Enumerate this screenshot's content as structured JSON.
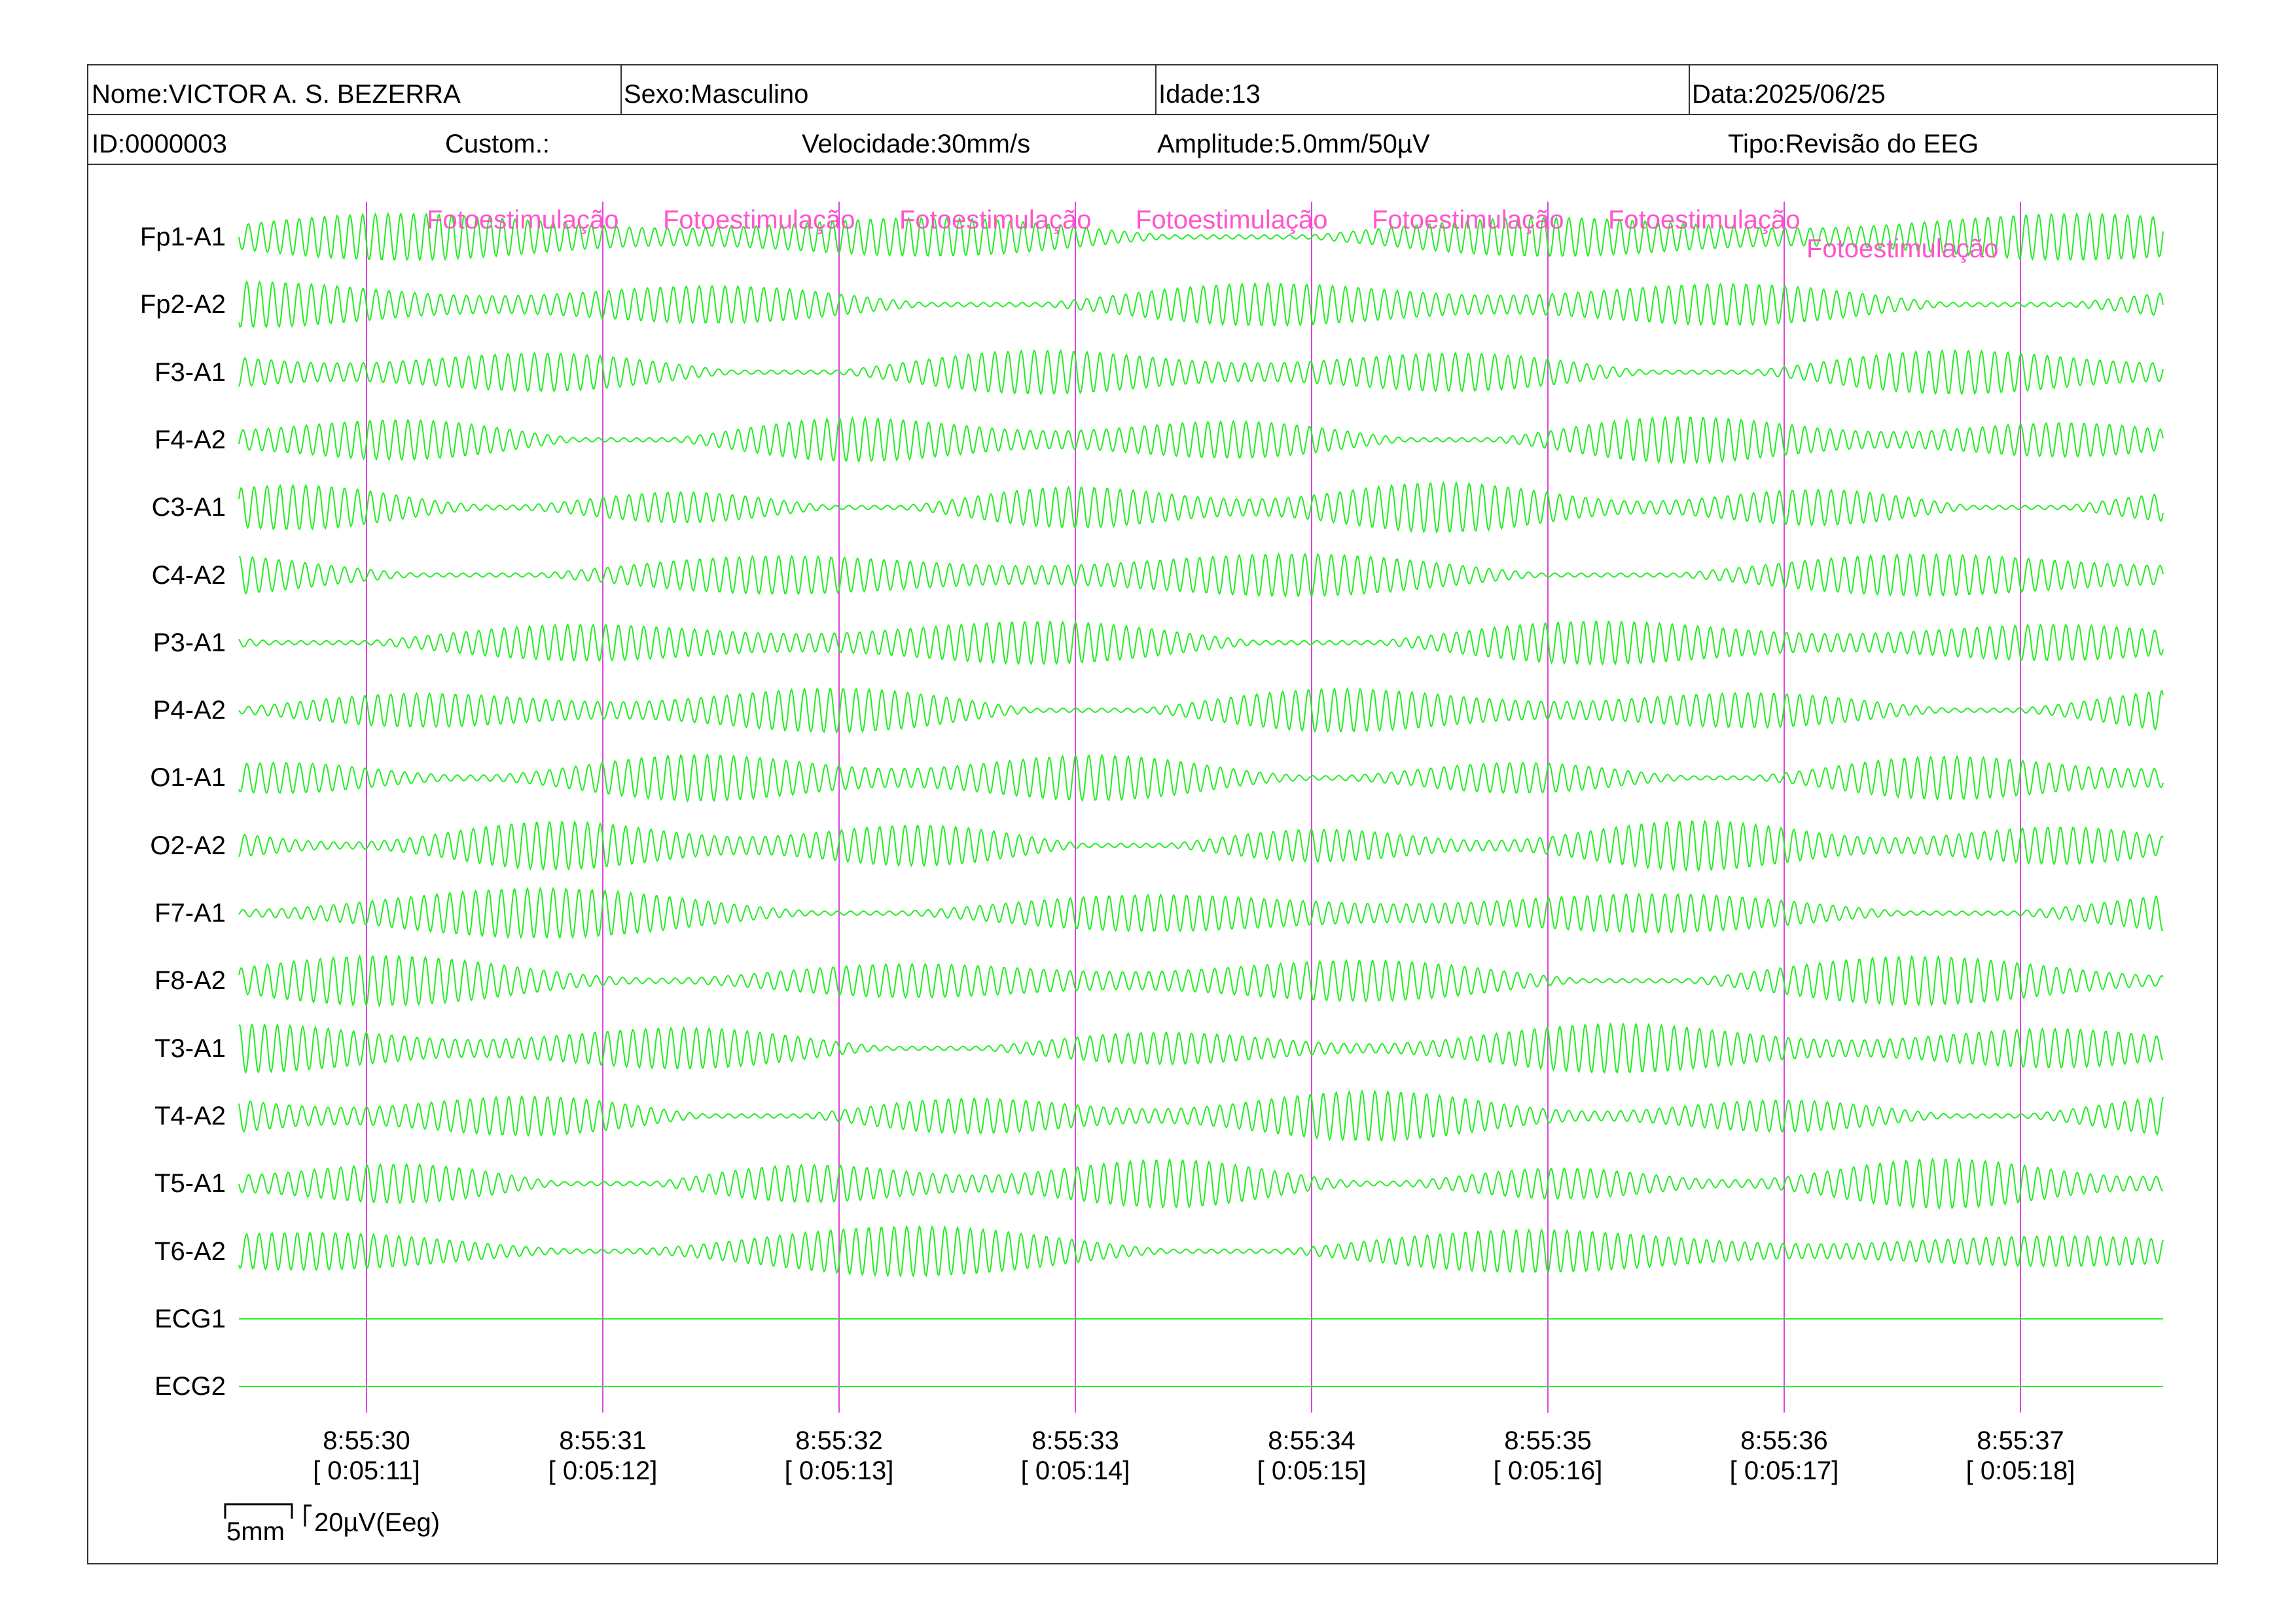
{
  "header": {
    "name": "Nome:VICTOR A. S. BEZERRA",
    "sex": "Sexo:Masculino",
    "age": "Idade:13",
    "date": "Data:2025/06/25",
    "id": "ID:0000003",
    "custom": "Custom.:",
    "speed": "Velocidade:30mm/s",
    "amplitude": "Amplitude:5.0mm/50µV",
    "type": "Tipo:Revisão do EEG"
  },
  "channels": [
    {
      "label": "Fp1-A1",
      "kind": "eeg"
    },
    {
      "label": "Fp2-A2",
      "kind": "eeg"
    },
    {
      "label": "F3-A1",
      "kind": "eeg"
    },
    {
      "label": "F4-A2",
      "kind": "eeg"
    },
    {
      "label": "C3-A1",
      "kind": "eeg"
    },
    {
      "label": "C4-A2",
      "kind": "eeg"
    },
    {
      "label": "P3-A1",
      "kind": "eeg"
    },
    {
      "label": "P4-A2",
      "kind": "eeg"
    },
    {
      "label": "O1-A1",
      "kind": "eeg"
    },
    {
      "label": "O2-A2",
      "kind": "eeg"
    },
    {
      "label": "F7-A1",
      "kind": "eeg"
    },
    {
      "label": "F8-A2",
      "kind": "eeg"
    },
    {
      "label": "T3-A1",
      "kind": "eeg"
    },
    {
      "label": "T4-A2",
      "kind": "eeg"
    },
    {
      "label": "T5-A1",
      "kind": "eeg"
    },
    {
      "label": "T6-A2",
      "kind": "eeg"
    },
    {
      "label": "ECG1",
      "kind": "flat"
    },
    {
      "label": "ECG2",
      "kind": "flat"
    }
  ],
  "events": [
    {
      "label": "Fotoestimulação"
    },
    {
      "label": "Fotoestimulação"
    },
    {
      "label": "Fotoestimulação"
    },
    {
      "label": "Fotoestimulação"
    },
    {
      "label": "Fotoestimulação"
    },
    {
      "label": "Fotoestimulação"
    },
    {
      "label": "Fotoestimulação"
    }
  ],
  "time_marks": [
    {
      "clock": "8:55:30",
      "elapsed": "[ 0:05:11]"
    },
    {
      "clock": "8:55:31",
      "elapsed": "[ 0:05:12]"
    },
    {
      "clock": "8:55:32",
      "elapsed": "[ 0:05:13]"
    },
    {
      "clock": "8:55:33",
      "elapsed": "[ 0:05:14]"
    },
    {
      "clock": "8:55:34",
      "elapsed": "[ 0:05:15]"
    },
    {
      "clock": "8:55:35",
      "elapsed": "[ 0:05:16]"
    },
    {
      "clock": "8:55:36",
      "elapsed": "[ 0:05:17]"
    },
    {
      "clock": "8:55:37",
      "elapsed": "[ 0:05:18]"
    }
  ],
  "calibration": {
    "time_scale": "5mm",
    "amplitude_scale": "20µV(Eeg)"
  },
  "colors": {
    "trace": "#22ee22",
    "marker": "#dd44dd",
    "event_text": "#ff55cc"
  }
}
